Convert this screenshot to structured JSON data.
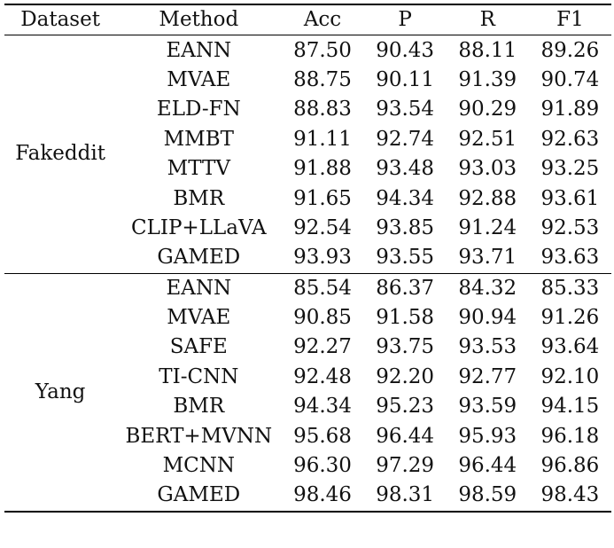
{
  "header": [
    "Dataset",
    "Method",
    "Acc",
    "P",
    "R",
    "F1"
  ],
  "groups": [
    {
      "dataset": "Fakeddit",
      "rows": [
        {
          "method": "EANN",
          "acc": "87.50",
          "p": "90.43",
          "r": "88.11",
          "f1": "89.26"
        },
        {
          "method": "MVAE",
          "acc": "88.75",
          "p": "90.11",
          "r": "91.39",
          "f1": "90.74"
        },
        {
          "method": "ELD-FN",
          "acc": "88.83",
          "p": "93.54",
          "r": "90.29",
          "f1": "91.89"
        },
        {
          "method": "MMBT",
          "acc": "91.11",
          "p": "92.74",
          "r": "92.51",
          "f1": "92.63"
        },
        {
          "method": "MTTV",
          "acc": "91.88",
          "p": "93.48",
          "r": "93.03",
          "f1": "93.25"
        },
        {
          "method": "BMR",
          "acc": "91.65",
          "p": "94.34",
          "r": "92.88",
          "f1": "93.61"
        },
        {
          "method": "CLIP+LLaVA",
          "acc": "92.54",
          "p": "93.85",
          "r": "91.24",
          "f1": "92.53"
        },
        {
          "method": "GAMED",
          "acc": "93.93",
          "p": "93.55",
          "r": "93.71",
          "f1": "93.63"
        }
      ]
    },
    {
      "dataset": "Yang",
      "rows": [
        {
          "method": "EANN",
          "acc": "85.54",
          "p": "86.37",
          "r": "84.32",
          "f1": "85.33"
        },
        {
          "method": "MVAE",
          "acc": "90.85",
          "p": "91.58",
          "r": "90.94",
          "f1": "91.26"
        },
        {
          "method": "SAFE",
          "acc": "92.27",
          "p": "93.75",
          "r": "93.53",
          "f1": "93.64"
        },
        {
          "method": "TI-CNN",
          "acc": "92.48",
          "p": "92.20",
          "r": "92.77",
          "f1": "92.10"
        },
        {
          "method": "BMR",
          "acc": "94.34",
          "p": "95.23",
          "r": "93.59",
          "f1": "94.15"
        },
        {
          "method": "BERT+MVNN",
          "acc": "95.68",
          "p": "96.44",
          "r": "95.93",
          "f1": "96.18"
        },
        {
          "method": "MCNN",
          "acc": "96.30",
          "p": "97.29",
          "r": "96.44",
          "f1": "96.86"
        },
        {
          "method": "GAMED",
          "acc": "98.46",
          "p": "98.31",
          "r": "98.59",
          "f1": "98.43"
        }
      ]
    }
  ]
}
